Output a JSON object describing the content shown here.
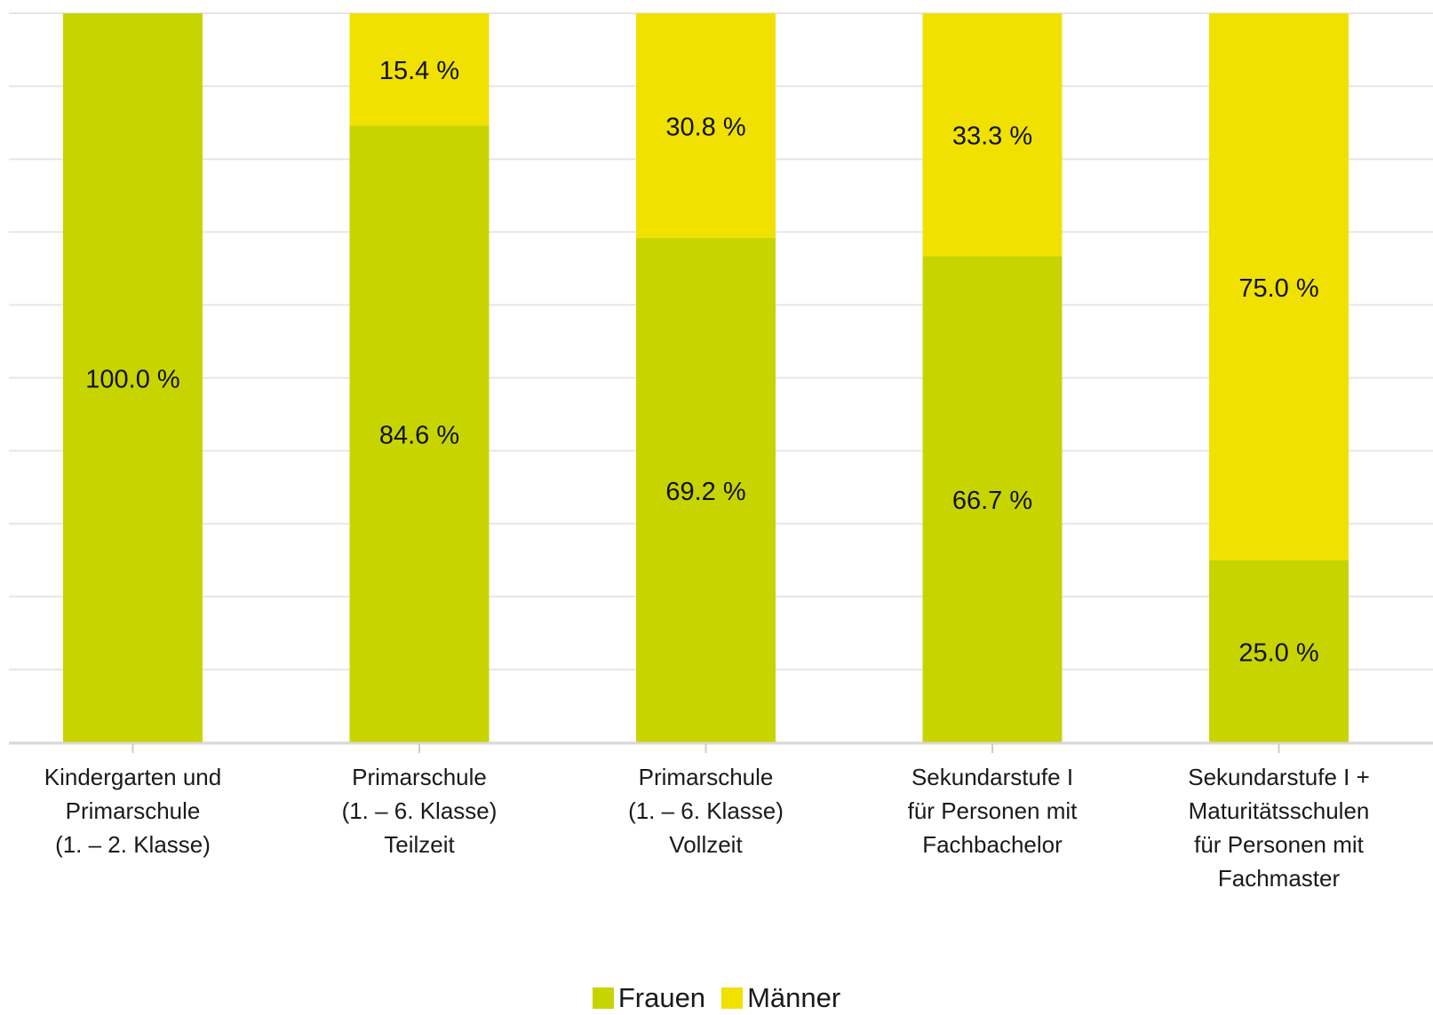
{
  "chart_data": {
    "type": "bar",
    "stacked": true,
    "categories": [
      [
        "Kindergarten und",
        "Primarschule",
        "(1. – 2. Klasse)"
      ],
      [
        "Primarschule",
        "(1. – 6. Klasse)",
        "Teilzeit"
      ],
      [
        "Primarschule",
        "(1. – 6. Klasse)",
        "Vollzeit"
      ],
      [
        "Sekundarstufe I",
        "für Personen mit",
        "Fachbachelor"
      ],
      [
        "Sekundarstufe I +",
        "Maturitätsschulen",
        "für Personen mit",
        "Fachmaster"
      ]
    ],
    "series": [
      {
        "name": "Frauen",
        "color": "#c8d400",
        "values": [
          100.0,
          84.6,
          69.2,
          66.7,
          25.0
        ],
        "labels": [
          "100.0 %",
          "84.6 %",
          "69.2 %",
          "66.7 %",
          "25.0 %"
        ]
      },
      {
        "name": "Männer",
        "color": "#f0e100",
        "values": [
          0.0,
          15.4,
          30.8,
          33.3,
          75.0
        ],
        "labels": [
          "",
          "15.4 %",
          "30.8 %",
          "33.3 %",
          "75.0 %"
        ]
      }
    ],
    "ylim": [
      0,
      100
    ],
    "grid": true,
    "legend_position": "bottom-center"
  },
  "legend": {
    "items": [
      {
        "label": "Frauen",
        "color": "#c8d400"
      },
      {
        "label": "Männer",
        "color": "#f0e100"
      }
    ]
  }
}
